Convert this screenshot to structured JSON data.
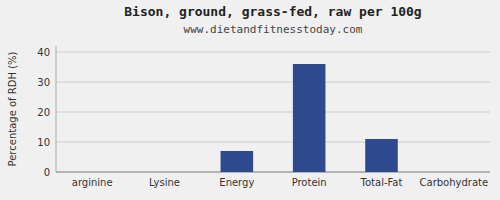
{
  "chart_data": {
    "type": "bar",
    "title": "Bison, ground, grass-fed, raw per 100g",
    "subtitle": "www.dietandfitnesstoday.com",
    "categories": [
      "arginine",
      "Lysine",
      "Energy",
      "Protein",
      "Total-Fat",
      "Carbohydrate"
    ],
    "values": [
      0,
      0,
      7,
      36,
      11,
      0
    ],
    "color": "#2e4a8e",
    "ylabel": "Percentage of RDH (%)",
    "ylim": [
      0,
      42
    ],
    "yticks": [
      0,
      10,
      20,
      30,
      40
    ],
    "grid": true
  }
}
